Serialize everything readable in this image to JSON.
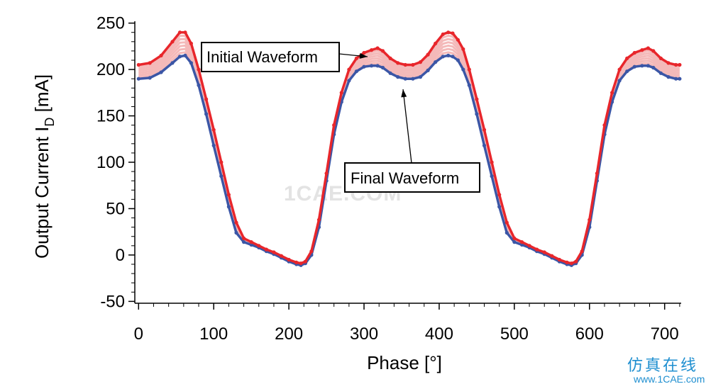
{
  "chart_data": {
    "type": "line",
    "xlabel": "Phase [°]",
    "ylabel": "Output Current  I",
    "ylabel_subscript": "D",
    "ylabel_unit": " [mA]",
    "xlim": [
      -5,
      722
    ],
    "ylim": [
      -52,
      252
    ],
    "x_ticks": [
      0,
      100,
      200,
      300,
      400,
      500,
      600,
      700
    ],
    "y_ticks": [
      -50,
      0,
      50,
      100,
      150,
      200,
      250
    ],
    "grid": false,
    "legend": "none",
    "annotations": [
      {
        "label": "Initial Waveform",
        "points_to": [
          318,
          222
        ]
      },
      {
        "label": "Final Waveform",
        "points_to": [
          352,
          190
        ]
      }
    ],
    "series": [
      {
        "role": "initial",
        "color": "#e8262b",
        "x": [
          0,
          15,
          30,
          45,
          55,
          62,
          70,
          80,
          90,
          100,
          110,
          120,
          130,
          140,
          150,
          160,
          170,
          180,
          190,
          200,
          210,
          216,
          222,
          230,
          240,
          250,
          260,
          270,
          280,
          290,
          300,
          310,
          318,
          325,
          335,
          345,
          355,
          365,
          375,
          385,
          395,
          405,
          412,
          418,
          425,
          432,
          440,
          450,
          460,
          470,
          480,
          490,
          500,
          510,
          520,
          530,
          540,
          550,
          560,
          570,
          576,
          582,
          590,
          600,
          610,
          620,
          630,
          640,
          650,
          660,
          670,
          678,
          685,
          695,
          705,
          715,
          720
        ],
        "y": [
          205,
          207,
          215,
          230,
          240,
          240,
          228,
          200,
          168,
          135,
          100,
          65,
          35,
          18,
          14,
          10,
          6,
          3,
          -1,
          -5,
          -8,
          -9,
          -7,
          4,
          38,
          88,
          140,
          175,
          200,
          212,
          218,
          221,
          223,
          220,
          212,
          207,
          205,
          205,
          208,
          216,
          228,
          238,
          240,
          239,
          232,
          222,
          200,
          168,
          135,
          100,
          65,
          35,
          18,
          14,
          10,
          6,
          3,
          -1,
          -5,
          -8,
          -9,
          -7,
          4,
          38,
          88,
          140,
          175,
          200,
          212,
          218,
          221,
          223,
          220,
          212,
          207,
          205,
          205
        ]
      },
      {
        "role": "final",
        "color": "#3b56a6",
        "x": [
          0,
          15,
          30,
          45,
          55,
          62,
          70,
          80,
          90,
          100,
          110,
          120,
          130,
          140,
          150,
          160,
          170,
          180,
          190,
          200,
          210,
          216,
          222,
          230,
          240,
          250,
          260,
          270,
          280,
          290,
          300,
          310,
          318,
          325,
          335,
          345,
          355,
          365,
          375,
          385,
          395,
          405,
          412,
          418,
          425,
          432,
          440,
          450,
          460,
          470,
          480,
          490,
          500,
          510,
          520,
          530,
          540,
          550,
          560,
          570,
          576,
          582,
          590,
          600,
          610,
          620,
          630,
          640,
          650,
          660,
          670,
          678,
          685,
          695,
          705,
          715,
          720
        ],
        "y": [
          190,
          191,
          197,
          207,
          214,
          215,
          207,
          183,
          152,
          118,
          85,
          52,
          24,
          14,
          11,
          8,
          4,
          1,
          -3,
          -7,
          -10,
          -11,
          -9,
          0,
          30,
          80,
          130,
          165,
          188,
          198,
          203,
          204,
          204,
          202,
          196,
          192,
          190,
          190,
          192,
          199,
          208,
          214,
          215,
          214,
          210,
          200,
          183,
          152,
          118,
          85,
          52,
          24,
          14,
          11,
          8,
          4,
          1,
          -3,
          -7,
          -10,
          -11,
          -9,
          0,
          30,
          80,
          130,
          165,
          188,
          198,
          203,
          204,
          204,
          202,
          196,
          192,
          190,
          190
        ]
      }
    ],
    "intermediate_curve_count": 6,
    "band_color": "#f4b9b9"
  },
  "watermark": {
    "center": "1CAE.COM",
    "corner_cn": "仿真在线",
    "corner_url": "www.1CAE.com"
  }
}
